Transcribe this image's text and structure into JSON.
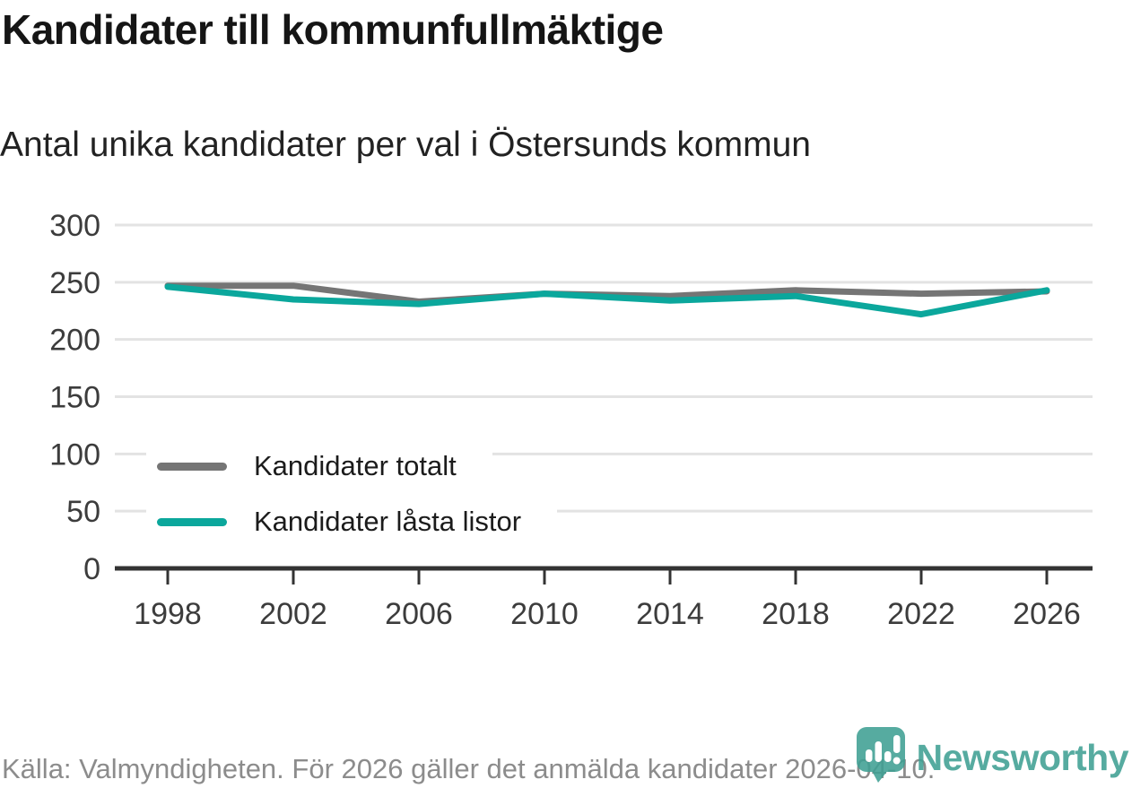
{
  "title": "Kandidater till kommunfullmäktige",
  "subtitle": "Antal unika kandidater per val i Östersunds kommun",
  "footer": {
    "source_text": "Källa: Valmyndigheten. För 2026 gäller det anmälda kandidater 2026-04-10."
  },
  "branding": {
    "wordmark": "Newsworthy",
    "icon": "newsworthy-chart-pin-icon",
    "color": "#3fa093"
  },
  "chart_data": {
    "type": "line",
    "title": "Kandidater till kommunfullmäktige",
    "subtitle": "Antal unika kandidater per val i Östersunds kommun",
    "x": [
      1998,
      2002,
      2006,
      2010,
      2014,
      2018,
      2022,
      2026
    ],
    "series": [
      {
        "name": "Kandidater totalt",
        "color": "#757575",
        "values": [
          247,
          247,
          233,
          240,
          238,
          243,
          240,
          242
        ]
      },
      {
        "name": "Kandidater låsta listor",
        "color": "#0ba79c",
        "values": [
          246,
          235,
          231,
          240,
          234,
          238,
          222,
          243
        ]
      }
    ],
    "ylim": [
      0,
      300
    ],
    "yticks": [
      0,
      50,
      100,
      150,
      200,
      250,
      300
    ],
    "grid": "horizontal",
    "legend_position": "inside-middle-left"
  },
  "colors": {
    "background": "#ffffff",
    "gridline": "#e3e3e3",
    "axis": "#333333",
    "tick_label": "#3c3c3c",
    "title": "#151515",
    "subtitle": "#222222",
    "footer_text": "#8c8c8c",
    "logo": "#3fa093"
  }
}
